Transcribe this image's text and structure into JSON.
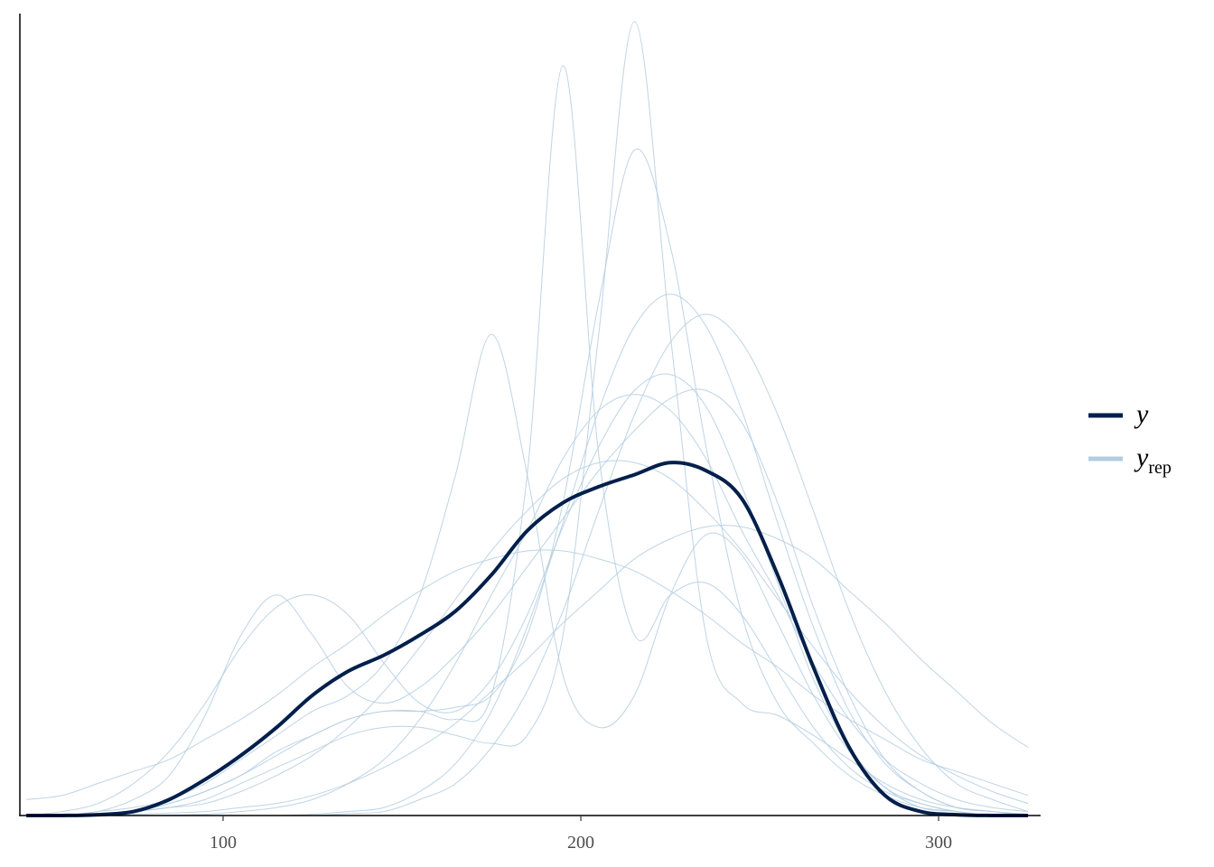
{
  "chart_data": {
    "type": "density-overlay",
    "x": [
      45,
      55,
      65,
      75,
      85,
      95,
      105,
      115,
      125,
      135,
      145,
      155,
      165,
      175,
      185,
      195,
      205,
      215,
      225,
      235,
      245,
      255,
      265,
      275,
      285,
      295,
      305,
      315,
      325
    ],
    "xlim": [
      43.2,
      328.5
    ],
    "xticks": [
      100,
      200,
      300
    ],
    "ylim": [
      0,
      0.02
    ],
    "legend": "right",
    "series": [
      {
        "name": "y",
        "color": "#011f4b",
        "values": [
          0,
          0,
          2e-05,
          0.0001,
          0.0004,
          0.0009,
          0.0015,
          0.0022,
          0.003,
          0.0036,
          0.004,
          0.0045,
          0.0051,
          0.006,
          0.0071,
          0.0078,
          0.0082,
          0.0085,
          0.0088,
          0.0086,
          0.0079,
          0.006,
          0.0037,
          0.0017,
          0.0005,
          0.0001,
          2e-05,
          0,
          0
        ]
      },
      {
        "name": "y",
        "subscript": "rep",
        "color": "#b3cde0",
        "values": [
          [
            1e-05,
            2e-05,
            5e-05,
            0.0001,
            0.0002,
            0.0003,
            0.0006,
            0.001,
            0.0015,
            0.0022,
            0.0031,
            0.0042,
            0.0054,
            0.0066,
            0.0076,
            0.0084,
            0.0088,
            0.0088,
            0.0084,
            0.0076,
            0.0066,
            0.0054,
            0.0042,
            0.0031,
            0.0022,
            0.0015,
            0.001,
            0.0006,
            0.0003
          ],
          [
            0,
            0,
            0,
            0.0001,
            0.0002,
            0.0004,
            0.0008,
            0.0012,
            0.0016,
            0.002,
            0.0022,
            0.0022,
            0.002,
            0.0018,
            0.002,
            0.0045,
            0.012,
            0.0198,
            0.012,
            0.0045,
            0.0028,
            0.0025,
            0.002,
            0.0014,
            0.0008,
            0.0004,
            0.0002,
            0.0001,
            0
          ],
          [
            0,
            0,
            0,
            0.0001,
            0.0003,
            0.0006,
            0.001,
            0.0016,
            0.002,
            0.0024,
            0.0026,
            0.0026,
            0.0024,
            0.003,
            0.0085,
            0.0187,
            0.009,
            0.0045,
            0.0055,
            0.0058,
            0.005,
            0.0036,
            0.0022,
            0.0012,
            0.0006,
            0.0003,
            0.0001,
            0,
            0
          ],
          [
            0,
            0,
            0.0001,
            0.0002,
            0.0004,
            0.0008,
            0.0014,
            0.002,
            0.0026,
            0.003,
            0.0038,
            0.0055,
            0.0085,
            0.012,
            0.0085,
            0.0035,
            0.0022,
            0.003,
            0.0055,
            0.007,
            0.0065,
            0.0048,
            0.003,
            0.0016,
            0.0007,
            0.0003,
            0.0001,
            0,
            0
          ],
          [
            0,
            0,
            0,
            0,
            0,
            0,
            0,
            0,
            0,
            5e-05,
            0.0001,
            0.0004,
            0.0008,
            0.0017,
            0.0031,
            0.0051,
            0.0076,
            0.01,
            0.0118,
            0.0125,
            0.0118,
            0.01,
            0.0076,
            0.0051,
            0.0031,
            0.0017,
            0.0008,
            0.0004,
            0.0001
          ],
          [
            0.0004,
            0.0005,
            0.0008,
            0.0011,
            0.0014,
            0.0019,
            0.0024,
            0.003,
            0.0037,
            0.0043,
            0.005,
            0.0056,
            0.0061,
            0.0064,
            0.0066,
            0.0066,
            0.0064,
            0.0061,
            0.0056,
            0.005,
            0.0043,
            0.0037,
            0.003,
            0.0024,
            0.0019,
            0.0014,
            0.0011,
            0.0008,
            0.0005
          ],
          [
            0,
            0.0001,
            0.0003,
            0.0008,
            0.0016,
            0.0028,
            0.0042,
            0.0052,
            0.0055,
            0.005,
            0.0038,
            0.0028,
            0.0026,
            0.0034,
            0.005,
            0.0072,
            0.0092,
            0.0106,
            0.011,
            0.0102,
            0.0082,
            0.0058,
            0.0034,
            0.0017,
            0.0007,
            0.0002,
            0.0001,
            0,
            0
          ],
          [
            0,
            0,
            0,
            0,
            1e-05,
            3e-05,
            0.0001,
            0.0002,
            0.0004,
            0.0008,
            0.0014,
            0.0024,
            0.0038,
            0.0055,
            0.0071,
            0.0089,
            0.0101,
            0.0105,
            0.0101,
            0.0089,
            0.0071,
            0.0055,
            0.0038,
            0.0024,
            0.0014,
            0.0008,
            0.0004,
            0.0002,
            0.0001
          ],
          [
            0,
            0,
            0,
            0.0001,
            0.0003,
            0.0006,
            0.001,
            0.0015,
            0.002,
            0.0024,
            0.0026,
            0.0026,
            0.0027,
            0.003,
            0.0045,
            0.0078,
            0.0128,
            0.0166,
            0.0142,
            0.0092,
            0.005,
            0.0028,
            0.0018,
            0.001,
            0.0005,
            0.0002,
            0.0001,
            0,
            0
          ],
          [
            0,
            0,
            0.0001,
            0.0004,
            0.001,
            0.0025,
            0.0045,
            0.0055,
            0.0045,
            0.0032,
            0.0028,
            0.0032,
            0.004,
            0.005,
            0.0062,
            0.0074,
            0.0086,
            0.0096,
            0.0104,
            0.0106,
            0.0098,
            0.0078,
            0.0052,
            0.003,
            0.0014,
            0.0006,
            0.0002,
            0.0001,
            0
          ],
          [
            0,
            0,
            0,
            3e-05,
            6e-05,
            0.0001,
            0.0002,
            0.0003,
            0.0005,
            0.0008,
            0.0012,
            0.0017,
            0.0023,
            0.0031,
            0.0039,
            0.0048,
            0.0056,
            0.0064,
            0.0069,
            0.0072,
            0.0072,
            0.0069,
            0.0064,
            0.0056,
            0.0048,
            0.0039,
            0.0031,
            0.0023,
            0.0017
          ],
          [
            0,
            0,
            0,
            0,
            0,
            0,
            0,
            0,
            3e-05,
            0.0001,
            0.0002,
            0.0006,
            0.0013,
            0.0026,
            0.0047,
            0.0073,
            0.0101,
            0.0122,
            0.013,
            0.0122,
            0.0101,
            0.0073,
            0.0047,
            0.0026,
            0.0013,
            0.0006,
            0.0002,
            0.0001,
            3e-05
          ]
        ]
      }
    ]
  }
}
